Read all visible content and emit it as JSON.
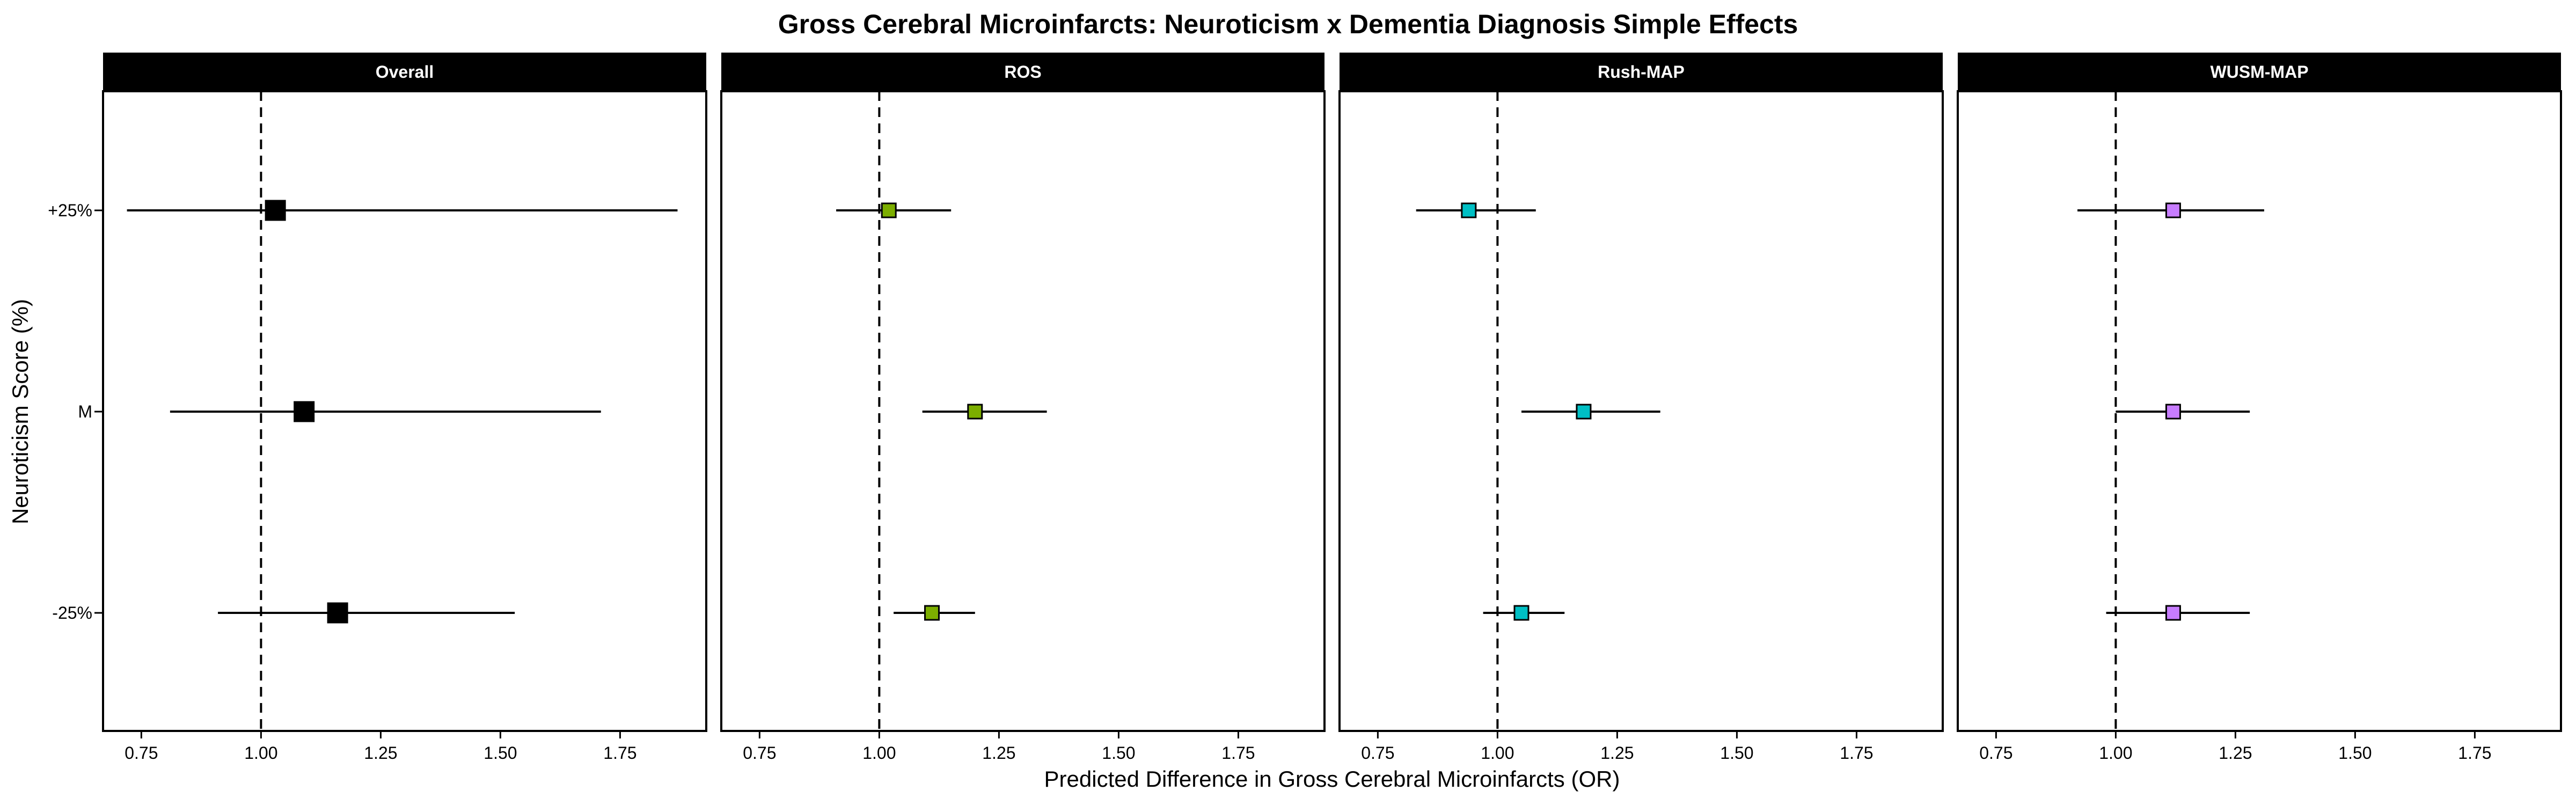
{
  "chart_data": {
    "type": "scatter",
    "title": "Gross Cerebral Microinfarcts: Neuroticism x Dementia Diagnosis Simple Effects",
    "xlabel": "Predicted Difference in Gross Cerebral Microinfarcts (OR)",
    "ylabel": "Neuroticism Score (%)",
    "xlim": [
      0.67,
      1.93
    ],
    "x_ticks": [
      "0.75",
      "1.00",
      "1.25",
      "1.50",
      "1.75"
    ],
    "y_categories": [
      "+25%",
      "M",
      "-25%"
    ],
    "reference_line_x": 1.0,
    "grid": false,
    "panels": [
      {
        "name": "Overall",
        "color": "#000000",
        "points": [
          {
            "category": "+25%",
            "estimate": 1.03,
            "lower": 0.72,
            "upper": 1.87
          },
          {
            "category": "M",
            "estimate": 1.09,
            "lower": 0.81,
            "upper": 1.71
          },
          {
            "category": "-25%",
            "estimate": 1.16,
            "lower": 0.91,
            "upper": 1.53
          }
        ]
      },
      {
        "name": "ROS",
        "color": "#7CAE00",
        "points": [
          {
            "category": "+25%",
            "estimate": 1.02,
            "lower": 0.91,
            "upper": 1.15
          },
          {
            "category": "M",
            "estimate": 1.2,
            "lower": 1.09,
            "upper": 1.35
          },
          {
            "category": "-25%",
            "estimate": 1.11,
            "lower": 1.03,
            "upper": 1.2
          }
        ]
      },
      {
        "name": "Rush-MAP",
        "color": "#00BFC4",
        "points": [
          {
            "category": "+25%",
            "estimate": 0.94,
            "lower": 0.83,
            "upper": 1.08
          },
          {
            "category": "M",
            "estimate": 1.18,
            "lower": 1.05,
            "upper": 1.34
          },
          {
            "category": "-25%",
            "estimate": 1.05,
            "lower": 0.97,
            "upper": 1.14
          }
        ]
      },
      {
        "name": "WUSM-MAP",
        "color": "#C77CFF",
        "points": [
          {
            "category": "+25%",
            "estimate": 1.12,
            "lower": 0.92,
            "upper": 1.31
          },
          {
            "category": "M",
            "estimate": 1.12,
            "lower": 1.0,
            "upper": 1.28
          },
          {
            "category": "-25%",
            "estimate": 1.12,
            "lower": 0.98,
            "upper": 1.28
          }
        ]
      }
    ]
  }
}
